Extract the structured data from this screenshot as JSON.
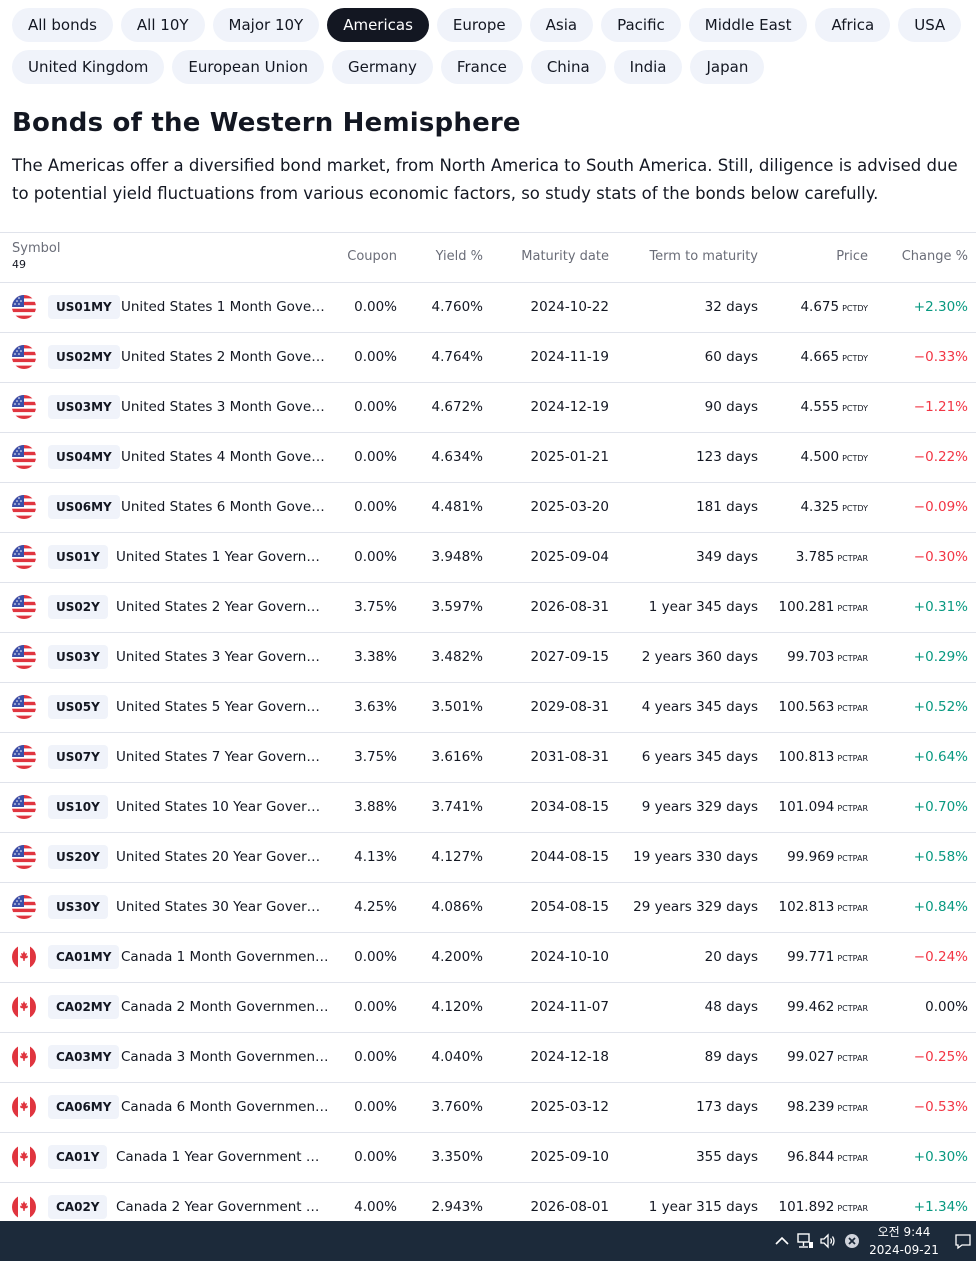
{
  "tabs_row1": [
    "All bonds",
    "All 10Y",
    "Major 10Y",
    "Americas",
    "Europe",
    "Asia",
    "Pacific",
    "Middle East",
    "Africa",
    "USA"
  ],
  "tabs_row2": [
    "United Kingdom",
    "European Union",
    "Germany",
    "France",
    "China",
    "India",
    "Japan"
  ],
  "active_tab": "Americas",
  "heading": "Bonds of the Western Hemisphere",
  "description": "The Americas offer a diversified bond market, from North America to South America. Still, diligence is advised due to potential yield fluctuations from various economic factors, so study stats of the bonds below carefully.",
  "table": {
    "columns": {
      "symbol": "Symbol",
      "count": "49",
      "coupon": "Coupon",
      "yield": "Yield %",
      "maturity": "Maturity date",
      "term": "Term to maturity",
      "price": "Price",
      "change": "Change %"
    },
    "rows": [
      {
        "flag": "us-flag-icon",
        "ticker": "US01MY",
        "name": "United States 1 Month Gove…",
        "coupon": "0.00%",
        "yield": "4.760%",
        "maturity": "2024-10-22",
        "term": "32 days",
        "price": "4.675",
        "unit": "PCTDY",
        "change": "+2.30%",
        "dir": "pos"
      },
      {
        "flag": "us-flag-icon",
        "ticker": "US02MY",
        "name": "United States 2 Month Gove…",
        "coupon": "0.00%",
        "yield": "4.764%",
        "maturity": "2024-11-19",
        "term": "60 days",
        "price": "4.665",
        "unit": "PCTDY",
        "change": "−0.33%",
        "dir": "neg"
      },
      {
        "flag": "us-flag-icon",
        "ticker": "US03MY",
        "name": "United States 3 Month Gove…",
        "coupon": "0.00%",
        "yield": "4.672%",
        "maturity": "2024-12-19",
        "term": "90 days",
        "price": "4.555",
        "unit": "PCTDY",
        "change": "−1.21%",
        "dir": "neg"
      },
      {
        "flag": "us-flag-icon",
        "ticker": "US04MY",
        "name": "United States 4 Month Gove…",
        "coupon": "0.00%",
        "yield": "4.634%",
        "maturity": "2025-01-21",
        "term": "123 days",
        "price": "4.500",
        "unit": "PCTDY",
        "change": "−0.22%",
        "dir": "neg"
      },
      {
        "flag": "us-flag-icon",
        "ticker": "US06MY",
        "name": "United States 6 Month Gove…",
        "coupon": "0.00%",
        "yield": "4.481%",
        "maturity": "2025-03-20",
        "term": "181 days",
        "price": "4.325",
        "unit": "PCTDY",
        "change": "−0.09%",
        "dir": "neg"
      },
      {
        "flag": "us-flag-icon",
        "ticker": "US01Y",
        "name": "United States 1 Year Govern…",
        "coupon": "0.00%",
        "yield": "3.948%",
        "maturity": "2025-09-04",
        "term": "349 days",
        "price": "3.785",
        "unit": "PCTPAR",
        "change": "−0.30%",
        "dir": "neg"
      },
      {
        "flag": "us-flag-icon",
        "ticker": "US02Y",
        "name": "United States 2 Year Govern…",
        "coupon": "3.75%",
        "yield": "3.597%",
        "maturity": "2026-08-31",
        "term": "1 year 345 days",
        "price": "100.281",
        "unit": "PCTPAR",
        "change": "+0.31%",
        "dir": "pos"
      },
      {
        "flag": "us-flag-icon",
        "ticker": "US03Y",
        "name": "United States 3 Year Govern…",
        "coupon": "3.38%",
        "yield": "3.482%",
        "maturity": "2027-09-15",
        "term": "2 years 360 days",
        "price": "99.703",
        "unit": "PCTPAR",
        "change": "+0.29%",
        "dir": "pos"
      },
      {
        "flag": "us-flag-icon",
        "ticker": "US05Y",
        "name": "United States 5 Year Govern…",
        "coupon": "3.63%",
        "yield": "3.501%",
        "maturity": "2029-08-31",
        "term": "4 years 345 days",
        "price": "100.563",
        "unit": "PCTPAR",
        "change": "+0.52%",
        "dir": "pos"
      },
      {
        "flag": "us-flag-icon",
        "ticker": "US07Y",
        "name": "United States 7 Year Govern…",
        "coupon": "3.75%",
        "yield": "3.616%",
        "maturity": "2031-08-31",
        "term": "6 years 345 days",
        "price": "100.813",
        "unit": "PCTPAR",
        "change": "+0.64%",
        "dir": "pos"
      },
      {
        "flag": "us-flag-icon",
        "ticker": "US10Y",
        "name": "United States 10 Year Gover…",
        "coupon": "3.88%",
        "yield": "3.741%",
        "maturity": "2034-08-15",
        "term": "9 years 329 days",
        "price": "101.094",
        "unit": "PCTPAR",
        "change": "+0.70%",
        "dir": "pos"
      },
      {
        "flag": "us-flag-icon",
        "ticker": "US20Y",
        "name": "United States 20 Year Gover…",
        "coupon": "4.13%",
        "yield": "4.127%",
        "maturity": "2044-08-15",
        "term": "19 years 330 days",
        "price": "99.969",
        "unit": "PCTPAR",
        "change": "+0.58%",
        "dir": "pos"
      },
      {
        "flag": "us-flag-icon",
        "ticker": "US30Y",
        "name": "United States 30 Year Gover…",
        "coupon": "4.25%",
        "yield": "4.086%",
        "maturity": "2054-08-15",
        "term": "29 years 329 days",
        "price": "102.813",
        "unit": "PCTPAR",
        "change": "+0.84%",
        "dir": "pos"
      },
      {
        "flag": "canada-flag-icon",
        "ticker": "CA01MY",
        "name": "Canada 1 Month Governmen…",
        "coupon": "0.00%",
        "yield": "4.200%",
        "maturity": "2024-10-10",
        "term": "20 days",
        "price": "99.771",
        "unit": "PCTPAR",
        "change": "−0.24%",
        "dir": "neg"
      },
      {
        "flag": "canada-flag-icon",
        "ticker": "CA02MY",
        "name": "Canada 2 Month Governmen…",
        "coupon": "0.00%",
        "yield": "4.120%",
        "maturity": "2024-11-07",
        "term": "48 days",
        "price": "99.462",
        "unit": "PCTPAR",
        "change": "0.00%",
        "dir": "neu"
      },
      {
        "flag": "canada-flag-icon",
        "ticker": "CA03MY",
        "name": "Canada 3 Month Governmen…",
        "coupon": "0.00%",
        "yield": "4.040%",
        "maturity": "2024-12-18",
        "term": "89 days",
        "price": "99.027",
        "unit": "PCTPAR",
        "change": "−0.25%",
        "dir": "neg"
      },
      {
        "flag": "canada-flag-icon",
        "ticker": "CA06MY",
        "name": "Canada 6 Month Governmen…",
        "coupon": "0.00%",
        "yield": "3.760%",
        "maturity": "2025-03-12",
        "term": "173 days",
        "price": "98.239",
        "unit": "PCTPAR",
        "change": "−0.53%",
        "dir": "neg"
      },
      {
        "flag": "canada-flag-icon",
        "ticker": "CA01Y",
        "name": "Canada 1 Year Government …",
        "coupon": "0.00%",
        "yield": "3.350%",
        "maturity": "2025-09-10",
        "term": "355 days",
        "price": "96.844",
        "unit": "PCTPAR",
        "change": "+0.30%",
        "dir": "pos"
      },
      {
        "flag": "canada-flag-icon",
        "ticker": "CA02Y",
        "name": "Canada 2 Year Government …",
        "coupon": "4.00%",
        "yield": "2.943%",
        "maturity": "2026-08-01",
        "term": "1 year 315 days",
        "price": "101.892",
        "unit": "PCTPAR",
        "change": "+1.34%",
        "dir": "pos"
      }
    ]
  },
  "taskbar": {
    "time": "오전 9:44",
    "date": "2024-09-21",
    "icons": [
      "chevron-up-icon",
      "network-icon",
      "volume-icon",
      "close-circle-icon",
      "notification-icon"
    ]
  },
  "colors": {
    "positive": "#089981",
    "negative": "#f23645",
    "active_tab_bg": "#131722",
    "chip_bg": "#f0f3fa",
    "taskbar_bg": "#1c2a3a"
  }
}
